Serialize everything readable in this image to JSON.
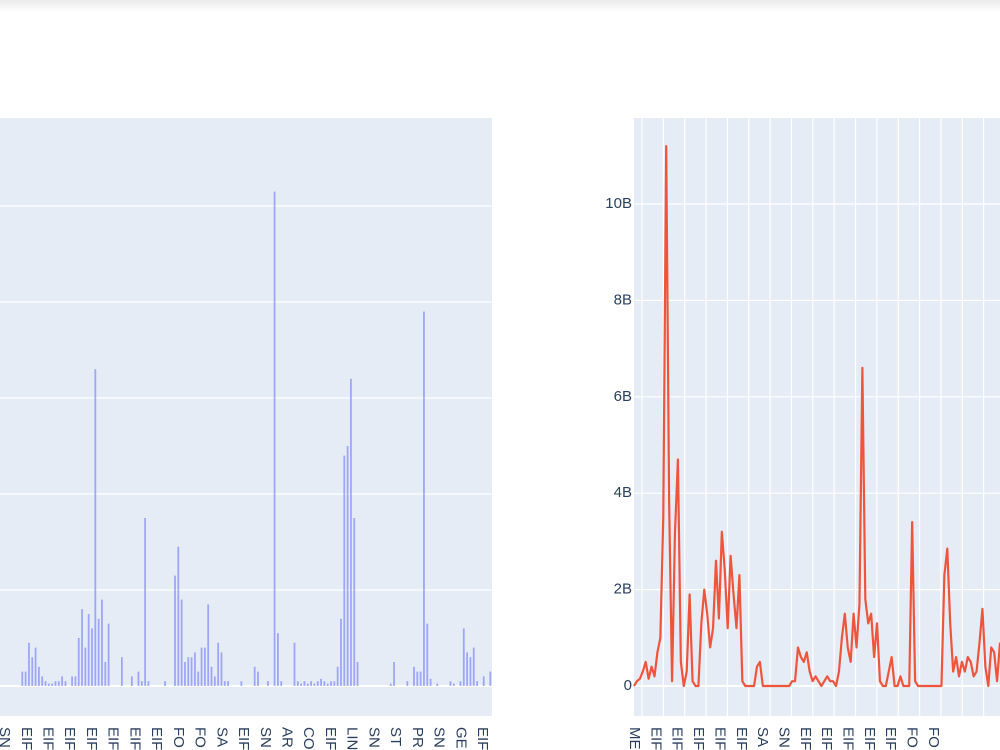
{
  "chart_data": [
    {
      "type": "bar",
      "color": "#636efa",
      "plot_bg": "#e5ecf6",
      "grid": true,
      "x_tick_labels": [
        "SN",
        "EIF",
        "EIF",
        "EIF",
        "EIF",
        "EIF",
        "EIF",
        "EIF",
        "FO",
        "FO",
        "SA",
        "EIF",
        "SN",
        "AR",
        "CO",
        "EIF",
        "LIN",
        "SN",
        "ST",
        "PR",
        "SN",
        "GE",
        "EIF"
      ],
      "y_gridline_count": 5,
      "values": [
        0,
        0,
        0.3,
        0.3,
        0.9,
        0.6,
        0.8,
        0.4,
        0.2,
        0.1,
        0.05,
        0.05,
        0.1,
        0.1,
        0.2,
        0.1,
        0,
        0.2,
        0.2,
        1,
        1.6,
        0.8,
        1.5,
        1.2,
        6.6,
        1.4,
        1.8,
        0.5,
        1.3,
        0,
        0,
        0,
        0.6,
        0,
        0,
        0.2,
        0,
        0.3,
        0.1,
        3.5,
        0.1,
        0,
        0,
        0,
        0,
        0.1,
        0,
        0,
        2.3,
        2.9,
        1.8,
        0.5,
        0.6,
        0.6,
        0.7,
        0.3,
        0.8,
        0.8,
        1.7,
        0.4,
        0.2,
        0.9,
        0.7,
        0.1,
        0.1,
        0,
        0,
        0,
        0.1,
        0,
        0,
        0,
        0.4,
        0.3,
        0,
        0,
        0.1,
        0,
        10.3,
        1.1,
        0.1,
        0,
        0,
        0,
        0.9,
        0.1,
        0.05,
        0.1,
        0.05,
        0.1,
        0.05,
        0.1,
        0.15,
        0.1,
        0.05,
        0.1,
        0.1,
        0.4,
        1.4,
        4.8,
        5,
        6.4,
        3.5,
        0.5,
        0,
        0,
        0,
        0,
        0,
        0,
        0,
        0,
        0,
        0.05,
        0.5,
        0,
        0,
        0,
        0.1,
        0,
        0.4,
        0.3,
        0.3,
        7.8,
        1.3,
        0.15,
        0,
        0.05,
        0,
        0,
        0,
        0.1,
        0.05,
        0,
        0.1,
        1.2,
        0.7,
        0.6,
        0.8,
        0.1,
        0,
        0.2,
        0,
        0.3
      ],
      "ylim": [
        0,
        12
      ]
    },
    {
      "type": "line",
      "color": "#ef553b",
      "plot_bg": "#e5ecf6",
      "grid": true,
      "y_tick_labels": [
        "0",
        "2B",
        "4B",
        "6B",
        "8B",
        "10B"
      ],
      "y_tick_values": [
        0,
        2,
        4,
        6,
        8,
        10
      ],
      "x_tick_labels": [
        "ME",
        "EIF",
        "EIF",
        "EIF",
        "EIF",
        "EIF",
        "SA",
        "SN",
        "EIF",
        "EIF",
        "EIF",
        "EIF",
        "EIF",
        "FO",
        "FO"
      ],
      "values": [
        0,
        0.1,
        0.15,
        0.3,
        0.5,
        0.15,
        0.4,
        0.2,
        0.7,
        1,
        3.5,
        11.2,
        3.8,
        0.1,
        3.2,
        4.7,
        0.5,
        0,
        0.3,
        1.9,
        0.1,
        0,
        0,
        1.3,
        2,
        1.5,
        0.8,
        1.2,
        2.6,
        1.4,
        3.2,
        2.4,
        1.2,
        2.7,
        1.9,
        1.2,
        2.3,
        0.1,
        0,
        0,
        0,
        0,
        0.4,
        0.5,
        0,
        0,
        0,
        0,
        0,
        0,
        0,
        0,
        0,
        0,
        0.1,
        0.1,
        0.8,
        0.6,
        0.5,
        0.7,
        0.3,
        0.1,
        0.2,
        0.1,
        0,
        0.1,
        0.2,
        0.1,
        0.1,
        0,
        0.3,
        1,
        1.5,
        0.8,
        0.5,
        1.5,
        0.8,
        1.7,
        6.6,
        1.8,
        1.3,
        1.5,
        0.6,
        1.3,
        0.1,
        0,
        0,
        0.3,
        0.6,
        0,
        0,
        0.2,
        0,
        0,
        0,
        3.4,
        0.1,
        0,
        0,
        0,
        0,
        0,
        0,
        0,
        0,
        0,
        2.3,
        2.85,
        1.3,
        0.3,
        0.6,
        0.2,
        0.5,
        0.3,
        0.6,
        0.5,
        0.2,
        0.3,
        0.9,
        1.6,
        0.4,
        0,
        0.8,
        0.7,
        0.1,
        0.9
      ]
    }
  ]
}
